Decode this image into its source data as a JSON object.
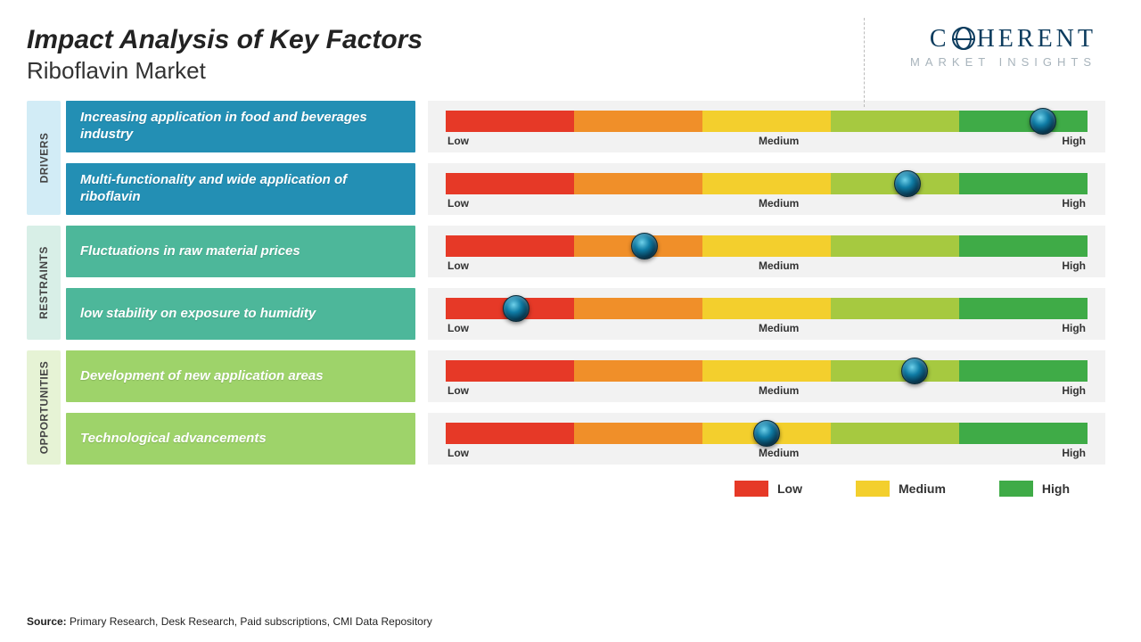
{
  "header": {
    "title": "Impact Analysis of Key Factors",
    "subtitle": "Riboflavin Market",
    "logo_main": "COHERENT",
    "logo_sub": "MARKET INSIGHTS"
  },
  "gauge": {
    "segment_colors": [
      "#e63927",
      "#f08f29",
      "#f3cf2d",
      "#a6c940",
      "#3fab47"
    ],
    "scale_labels": [
      "Low",
      "Medium",
      "High"
    ]
  },
  "categories": [
    {
      "key": "drivers",
      "label": "DRIVERS",
      "tab_bg": "#d2ecf6",
      "factor_bg": "#238fb4",
      "items": [
        {
          "text": "Increasing application in food and beverages industry",
          "marker_pct": 93
        },
        {
          "text": "Multi-functionality and wide application of riboflavin",
          "marker_pct": 72
        }
      ]
    },
    {
      "key": "restraints",
      "label": "RESTRAINTS",
      "tab_bg": "#d8efe7",
      "factor_bg": "#4db79a",
      "items": [
        {
          "text": "Fluctuations in raw material prices",
          "marker_pct": 31
        },
        {
          "text": "low stability on exposure to humidity",
          "marker_pct": 11
        }
      ]
    },
    {
      "key": "opportunities",
      "label": "OPPORTUNITIES",
      "tab_bg": "#e6f3d5",
      "factor_bg": "#9ed36a",
      "items": [
        {
          "text": "Development of new application areas",
          "marker_pct": 73
        },
        {
          "text": "Technological advancements",
          "marker_pct": 50
        }
      ]
    }
  ],
  "legend": [
    {
      "label": "Low",
      "color": "#e63927"
    },
    {
      "label": "Medium",
      "color": "#f3cf2d"
    },
    {
      "label": "High",
      "color": "#3fab47"
    }
  ],
  "source": {
    "label": "Source:",
    "text": " Primary Research, Desk Research, Paid subscriptions, CMI Data Repository"
  }
}
